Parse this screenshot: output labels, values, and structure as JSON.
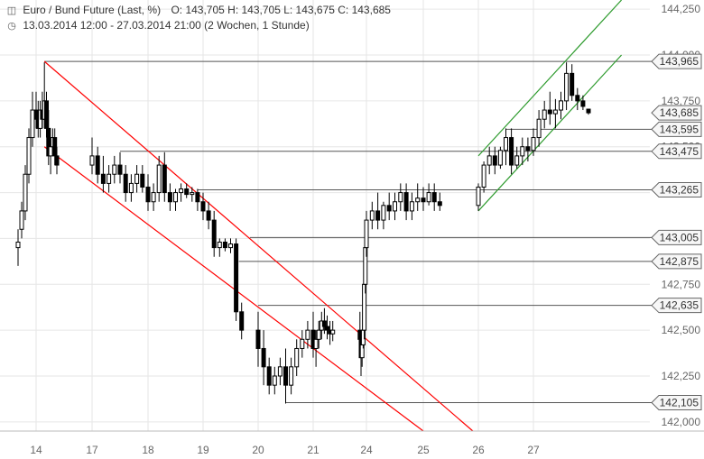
{
  "header": {
    "symbol_icon": "chart-icon",
    "title": "Euro / Bund Future (Last, %)",
    "ohlc": "O: 143,705  H: 143,705  L: 143,675  C: 143,685",
    "clock_icon": "clock-icon",
    "range": "13.03.2014 12:00 - 27.03.2014 21:00 (2 Wochen, 1 Stunde)"
  },
  "colors": {
    "candle": "#000000",
    "grid": "#e6e6e6",
    "level_line": "#555555",
    "red_channel": "#ff0000",
    "green_channel": "#2e9b2e",
    "axis_text": "#666666"
  },
  "chart_data": {
    "type": "candlestick",
    "x_ticks": [
      "14",
      "17",
      "18",
      "19",
      "20",
      "21",
      "24",
      "25",
      "26",
      "27"
    ],
    "y_ticks": [
      "144,250",
      "144,000",
      "143,750",
      "143,500",
      "143,250",
      "143,000",
      "142,750",
      "142,500",
      "142,250",
      "142,000"
    ],
    "y_tick_values": [
      144.25,
      144.0,
      143.75,
      143.5,
      143.25,
      143.0,
      142.75,
      142.5,
      142.25,
      142.0
    ],
    "ylim": [
      141.95,
      144.3
    ],
    "price_boxes": [
      {
        "label": "143,965",
        "value": 143.965
      },
      {
        "label": "143,685",
        "value": 143.685,
        "current": true
      },
      {
        "label": "143,595",
        "value": 143.595
      },
      {
        "label": "143,475",
        "value": 143.475
      },
      {
        "label": "143,265",
        "value": 143.265
      },
      {
        "label": "143,005",
        "value": 143.005
      },
      {
        "label": "142,875",
        "value": 142.875
      },
      {
        "label": "142,635",
        "value": 142.635
      },
      {
        "label": "142,105",
        "value": 142.105
      }
    ],
    "levels": [
      {
        "value": 143.965,
        "from": 14.4
      },
      {
        "value": 143.595,
        "from": 26.5
      },
      {
        "value": 143.475,
        "from": 17.5
      },
      {
        "value": 143.265,
        "from": 18.9
      },
      {
        "value": 143.005,
        "from": 19.85
      },
      {
        "value": 142.875,
        "from": 19.65
      },
      {
        "value": 142.635,
        "from": 20.0
      },
      {
        "value": 142.105,
        "from": 20.5
      }
    ],
    "channels": [
      {
        "color": "red",
        "points": [
          [
            14.4,
            143.965
          ],
          [
            25.9,
            141.95
          ]
        ]
      },
      {
        "color": "red",
        "points": [
          [
            14.4,
            143.5
          ],
          [
            25.0,
            141.95
          ]
        ]
      },
      {
        "color": "green",
        "points": [
          [
            26.0,
            143.45
          ],
          [
            28.6,
            144.3
          ]
        ]
      },
      {
        "color": "green",
        "points": [
          [
            26.0,
            143.15
          ],
          [
            28.6,
            144.0
          ]
        ]
      }
    ],
    "candles": [
      [
        13.5,
        142.95,
        143.05,
        142.85,
        142.98
      ],
      [
        13.6,
        143.05,
        143.2,
        143.0,
        143.15
      ],
      [
        13.7,
        143.15,
        143.4,
        143.1,
        143.35
      ],
      [
        13.8,
        143.35,
        143.6,
        143.3,
        143.55
      ],
      [
        13.9,
        143.55,
        143.8,
        143.5,
        143.7
      ],
      [
        14.0,
        143.7,
        143.8,
        143.6,
        143.65
      ],
      [
        14.1,
        143.65,
        143.75,
        143.55,
        143.6
      ],
      [
        14.2,
        143.6,
        143.75,
        143.55,
        143.7
      ],
      [
        14.3,
        143.7,
        143.8,
        143.6,
        143.65
      ],
      [
        14.4,
        143.65,
        143.96,
        143.6,
        143.75
      ],
      [
        14.5,
        143.75,
        143.8,
        143.55,
        143.6
      ],
      [
        14.6,
        143.6,
        143.7,
        143.4,
        143.45
      ],
      [
        14.7,
        143.45,
        143.55,
        143.35,
        143.5
      ],
      [
        14.8,
        143.5,
        143.6,
        143.45,
        143.55
      ],
      [
        14.9,
        143.55,
        143.6,
        143.4,
        143.45
      ],
      [
        15.0,
        143.45,
        143.5,
        143.35,
        143.4
      ],
      [
        17.0,
        143.4,
        143.55,
        143.35,
        143.45
      ],
      [
        17.1,
        143.45,
        143.5,
        143.3,
        143.35
      ],
      [
        17.2,
        143.35,
        143.45,
        143.25,
        143.3
      ],
      [
        17.3,
        143.3,
        143.4,
        143.25,
        143.35
      ],
      [
        17.4,
        143.35,
        143.45,
        143.3,
        143.4
      ],
      [
        17.5,
        143.4,
        143.47,
        143.3,
        143.35
      ],
      [
        17.6,
        143.35,
        143.4,
        143.2,
        143.25
      ],
      [
        17.7,
        143.25,
        143.35,
        143.2,
        143.3
      ],
      [
        17.8,
        143.3,
        143.4,
        143.25,
        143.35
      ],
      [
        17.9,
        143.35,
        143.4,
        143.25,
        143.28
      ],
      [
        18.0,
        143.28,
        143.35,
        143.15,
        143.2
      ],
      [
        18.1,
        143.2,
        143.3,
        143.15,
        143.25
      ],
      [
        18.2,
        143.25,
        143.45,
        143.2,
        143.4
      ],
      [
        18.3,
        143.4,
        143.47,
        143.2,
        143.25
      ],
      [
        18.4,
        143.25,
        143.3,
        143.15,
        143.2
      ],
      [
        18.5,
        143.2,
        143.27,
        143.15,
        143.25
      ],
      [
        18.6,
        143.25,
        143.3,
        143.2,
        143.27
      ],
      [
        18.7,
        143.27,
        143.3,
        143.22,
        143.24
      ],
      [
        18.8,
        143.24,
        143.28,
        143.2,
        143.25
      ],
      [
        18.9,
        143.25,
        143.27,
        143.15,
        143.2
      ],
      [
        19.0,
        143.2,
        143.25,
        143.1,
        143.15
      ],
      [
        19.1,
        143.15,
        143.2,
        143.05,
        143.1
      ],
      [
        19.2,
        143.1,
        143.15,
        142.9,
        142.95
      ],
      [
        19.3,
        142.95,
        143.0,
        142.9,
        142.98
      ],
      [
        19.4,
        142.98,
        143.0,
        142.93,
        142.95
      ],
      [
        19.5,
        142.95,
        143.0,
        142.92,
        142.97
      ],
      [
        19.6,
        142.97,
        143.0,
        142.55,
        142.6
      ],
      [
        19.7,
        142.6,
        142.65,
        142.45,
        142.5
      ],
      [
        20.0,
        142.5,
        142.6,
        142.3,
        142.4
      ],
      [
        20.1,
        142.4,
        142.5,
        142.2,
        142.3
      ],
      [
        20.2,
        142.3,
        142.35,
        142.15,
        142.2
      ],
      [
        20.3,
        142.2,
        142.3,
        142.15,
        142.25
      ],
      [
        20.4,
        142.25,
        142.35,
        142.2,
        142.3
      ],
      [
        20.5,
        142.3,
        142.4,
        142.1,
        142.2
      ],
      [
        20.6,
        142.2,
        142.35,
        142.15,
        142.3
      ],
      [
        20.7,
        142.3,
        142.45,
        142.25,
        142.4
      ],
      [
        20.8,
        142.4,
        142.5,
        142.35,
        142.45
      ],
      [
        20.9,
        142.45,
        142.55,
        142.4,
        142.5
      ],
      [
        21.0,
        142.5,
        142.6,
        142.35,
        142.4
      ],
      [
        21.1,
        142.4,
        142.5,
        142.3,
        142.45
      ],
      [
        21.2,
        142.45,
        142.55,
        142.4,
        142.5
      ],
      [
        21.3,
        142.5,
        142.6,
        142.45,
        142.55
      ],
      [
        21.4,
        142.55,
        142.62,
        142.48,
        142.52
      ],
      [
        21.5,
        142.52,
        142.58,
        142.45,
        142.5
      ],
      [
        21.6,
        142.5,
        142.55,
        142.42,
        142.48
      ],
      [
        21.7,
        142.48,
        142.55,
        142.44,
        142.5
      ],
      [
        23.4,
        142.5,
        142.6,
        142.42,
        142.45
      ],
      [
        23.5,
        142.45,
        142.5,
        142.25,
        142.35
      ],
      [
        23.6,
        142.35,
        142.45,
        142.3,
        142.42
      ],
      [
        23.7,
        142.42,
        142.55,
        142.4,
        142.5
      ],
      [
        23.8,
        142.5,
        142.8,
        142.45,
        142.75
      ],
      [
        23.9,
        142.75,
        143.0,
        142.7,
        142.95
      ],
      [
        24.0,
        142.95,
        143.15,
        142.9,
        143.1
      ],
      [
        24.1,
        143.1,
        143.2,
        143.05,
        143.15
      ],
      [
        24.2,
        143.15,
        143.25,
        143.05,
        143.1
      ],
      [
        24.3,
        143.1,
        143.2,
        143.05,
        143.18
      ],
      [
        24.4,
        143.18,
        143.25,
        143.1,
        143.15
      ],
      [
        24.5,
        143.15,
        143.25,
        143.1,
        143.2
      ],
      [
        24.6,
        143.2,
        143.3,
        143.15,
        143.25
      ],
      [
        24.7,
        143.25,
        143.3,
        143.1,
        143.15
      ],
      [
        24.8,
        143.15,
        143.25,
        143.1,
        143.2
      ],
      [
        24.9,
        143.2,
        143.3,
        143.15,
        143.22
      ],
      [
        25.0,
        143.22,
        143.28,
        143.15,
        143.2
      ],
      [
        25.1,
        143.2,
        143.3,
        143.18,
        143.25
      ],
      [
        25.2,
        143.25,
        143.3,
        143.15,
        143.2
      ],
      [
        25.3,
        143.2,
        143.25,
        143.15,
        143.18
      ],
      [
        26.0,
        143.18,
        143.3,
        143.15,
        143.28
      ],
      [
        26.1,
        143.28,
        143.42,
        143.25,
        143.4
      ],
      [
        26.2,
        143.4,
        143.5,
        143.35,
        143.45
      ],
      [
        26.3,
        143.45,
        143.5,
        143.35,
        143.4
      ],
      [
        26.4,
        143.4,
        143.5,
        143.38,
        143.48
      ],
      [
        26.5,
        143.48,
        143.6,
        143.4,
        143.55
      ],
      [
        26.6,
        143.55,
        143.6,
        143.35,
        143.4
      ],
      [
        26.7,
        143.4,
        143.5,
        143.38,
        143.45
      ],
      [
        26.8,
        143.45,
        143.55,
        143.4,
        143.5
      ],
      [
        26.9,
        143.5,
        143.55,
        143.42,
        143.48
      ],
      [
        27.0,
        143.48,
        143.6,
        143.45,
        143.55
      ],
      [
        27.1,
        143.55,
        143.7,
        143.5,
        143.65
      ],
      [
        27.2,
        143.65,
        143.75,
        143.6,
        143.7
      ],
      [
        27.3,
        143.7,
        143.8,
        143.62,
        143.68
      ],
      [
        27.4,
        143.68,
        143.76,
        143.6,
        143.7
      ],
      [
        27.5,
        143.7,
        143.8,
        143.65,
        143.75
      ],
      [
        27.6,
        143.75,
        143.96,
        143.7,
        143.9
      ],
      [
        27.7,
        143.9,
        143.95,
        143.75,
        143.78
      ],
      [
        27.8,
        143.78,
        143.82,
        143.7,
        143.75
      ],
      [
        27.9,
        143.75,
        143.78,
        143.7,
        143.72
      ],
      [
        28.0,
        143.705,
        143.705,
        143.675,
        143.685
      ]
    ]
  }
}
